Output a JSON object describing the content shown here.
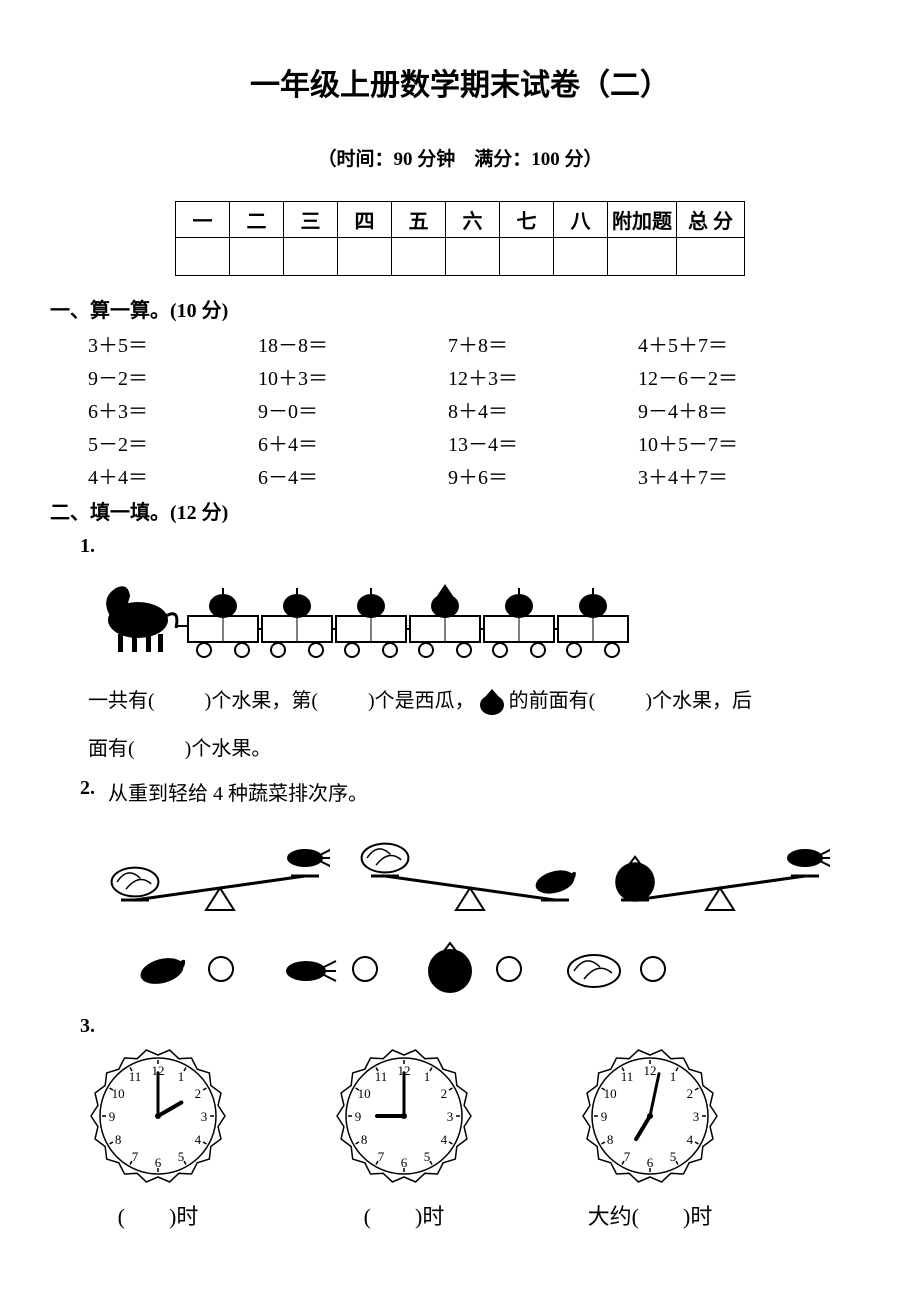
{
  "title": "一年级上册数学期末试卷（二）",
  "subtitle": "（时间：90 分钟　满分：100 分）",
  "score_table": {
    "headers": [
      "一",
      "二",
      "三",
      "四",
      "五",
      "六",
      "七",
      "八",
      "附加题",
      "总 分"
    ]
  },
  "section1": {
    "heading": "一、算一算。(10 分)",
    "rows": [
      [
        "3＋5＝",
        "18－8＝",
        "7＋8＝",
        "4＋5＋7＝"
      ],
      [
        "9－2＝",
        "10＋3＝",
        "12＋3＝",
        "12－6－2＝"
      ],
      [
        "6＋3＝",
        "9－0＝",
        "8＋4＝",
        "9－4＋8＝"
      ],
      [
        "5－2＝",
        "6＋4＝",
        "13－4＝",
        "10＋5－7＝"
      ],
      [
        "4＋4＝",
        "6－4＝",
        "9＋6＝",
        "3＋4＋7＝"
      ]
    ]
  },
  "section2": {
    "heading": "二、填一填。(12 分)",
    "q1": {
      "num": "1.",
      "line1_a": "一共有(",
      "line1_b": ")个水果，第(",
      "line1_c": ")个是西瓜，",
      "line1_d": "的前面有(",
      "line1_e": ")个水果，后",
      "line2_a": "面有(",
      "line2_b": ")个水果。",
      "train": {
        "cars": 6,
        "horse_color": "#000000",
        "car_outline": "#000000",
        "fruit_colors": [
          "#000000",
          "#000000",
          "#000000",
          "#000000",
          "#000000",
          "#000000"
        ]
      }
    },
    "q2": {
      "num": "2.",
      "text": "从重到轻给 4 种蔬菜排次序。",
      "scales": [
        {
          "left_heavy": true,
          "left_item": "cabbage",
          "right_item": "carrot"
        },
        {
          "left_heavy": false,
          "left_item": "cabbage",
          "right_item": "eggplant"
        },
        {
          "left_heavy": true,
          "left_item": "tomato",
          "right_item": "carrot"
        }
      ],
      "answer_items": [
        "eggplant",
        "carrot",
        "tomato",
        "cabbage"
      ],
      "circle_color": "#000000"
    },
    "q3": {
      "num": "3.",
      "clocks": [
        {
          "hour": 2,
          "minute": 0,
          "label_before": "(",
          "label_after": ")时"
        },
        {
          "hour": 9,
          "minute": 0,
          "label_before": "(",
          "label_after": ")时"
        },
        {
          "hour": 7,
          "minute": 2,
          "label_before": "大约(",
          "label_after": ")时"
        }
      ],
      "clock_style": {
        "face_color": "#ffffff",
        "border_color": "#000000",
        "tick_color": "#000000",
        "hand_color": "#000000",
        "radius": 60
      }
    }
  },
  "colors": {
    "background": "#ffffff",
    "text": "#000000",
    "border": "#000000"
  }
}
